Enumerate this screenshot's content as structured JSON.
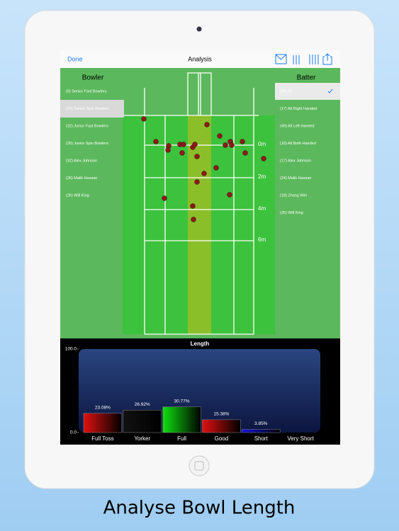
{
  "nav": {
    "done": "Done",
    "title": "Analysis"
  },
  "bowler": {
    "heading": "Bowler",
    "items": [
      "(0)  Senior Fast Bowlers",
      "(26) Senior Spin Bowlers",
      "(32) Junior Fast Bowlers",
      "(26) Junior Spin Bowlers",
      "(32) Alex Johnson",
      "(26) Malik Hassan",
      "(26) Will King"
    ]
  },
  "batter": {
    "heading": "Batter",
    "items": [
      "(84) All",
      "(17) All Right Handed",
      "(49) All Left Handed",
      "(18) All Both Handed",
      "(17) Alex Johnson",
      "(24) Malik Hassan",
      "(18) Zhang Wei",
      "(25) Will King"
    ]
  },
  "pitch": {
    "labels": [
      "0m",
      "2m",
      "4m",
      "6m"
    ]
  },
  "caption": "Analyse Bowl Length",
  "chart_data": {
    "type": "bar",
    "title": "Length",
    "categories": [
      "Full Toss",
      "Yorker",
      "Full",
      "Good",
      "Short",
      "Very Short"
    ],
    "values": [
      23.08,
      26.92,
      30.77,
      15.38,
      3.85,
      0
    ],
    "value_labels": [
      "23.08%",
      "26.92%",
      "30.77%",
      "15.38%",
      "3.85%",
      null
    ],
    "colors": [
      "#e01010",
      "#111111",
      "#10e010",
      "#e01010",
      "#1010e0",
      "#111111"
    ],
    "ylim": [
      0,
      100
    ],
    "yticks": [
      {
        "value": 0,
        "label": "0.0"
      },
      {
        "value": 100,
        "label": "100.0"
      }
    ]
  }
}
